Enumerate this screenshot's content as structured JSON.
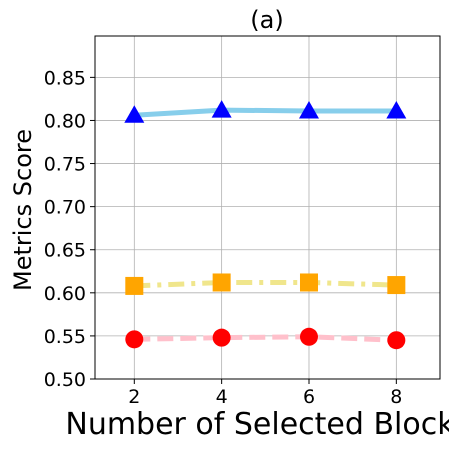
{
  "chart_data": {
    "type": "line",
    "title": "(a)",
    "xlabel": "Number of Selected Block",
    "ylabel": "Metrics Score",
    "x": [
      2,
      4,
      6,
      8
    ],
    "xticks": [
      "2",
      "4",
      "6",
      "8"
    ],
    "yticks": [
      "0.50",
      "0.55",
      "0.60",
      "0.65",
      "0.70",
      "0.75",
      "0.80",
      "0.85"
    ],
    "xlim": [
      1.1,
      9.0
    ],
    "ylim": [
      0.5,
      0.898
    ],
    "grid": true,
    "series": [
      {
        "values": [
          0.806,
          0.812,
          0.811,
          0.811
        ],
        "color": "#87CEEB",
        "marker_color": "#0000FF",
        "marker": "triangle",
        "linestyle": "solid"
      },
      {
        "values": [
          0.608,
          0.612,
          0.612,
          0.609
        ],
        "color": "#F0E68C",
        "marker_color": "#FFA500",
        "marker": "square",
        "linestyle": "dashdot"
      },
      {
        "values": [
          0.546,
          0.548,
          0.549,
          0.545
        ],
        "color": "#FFC0CB",
        "marker_color": "#FF0000",
        "marker": "circle",
        "linestyle": "dashed"
      }
    ]
  }
}
